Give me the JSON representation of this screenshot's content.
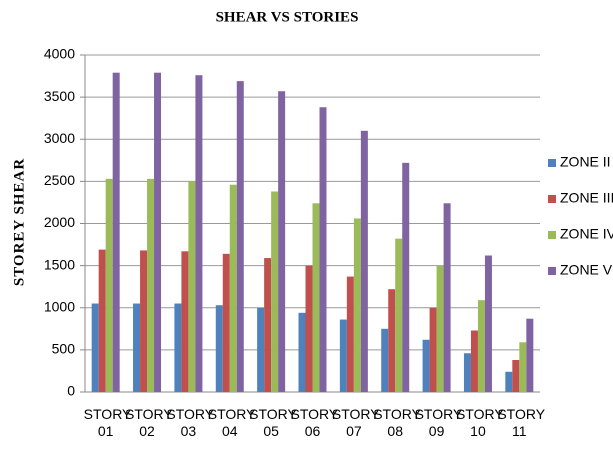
{
  "chart_data": {
    "type": "bar",
    "title": "SHEAR VS STORIES",
    "y_label": "STOREY SHEAR",
    "categories": [
      "STORY 01",
      "STORY 02",
      "STORY 03",
      "STORY 04",
      "STORY 05",
      "STORY 06",
      "STORY 07",
      "STORY 08",
      "STORY 09",
      "STORY 10",
      "STORY 11"
    ],
    "series": [
      {
        "name": "ZONE II",
        "color": "#4f81bd",
        "values": [
          1050,
          1050,
          1050,
          1030,
          1000,
          940,
          860,
          750,
          620,
          460,
          240
        ]
      },
      {
        "name": "ZONE III",
        "color": "#c0504d",
        "values": [
          1690,
          1680,
          1670,
          1640,
          1590,
          1500,
          1370,
          1220,
          1000,
          730,
          380
        ]
      },
      {
        "name": "ZONE IV",
        "color": "#9bbb59",
        "values": [
          2530,
          2530,
          2500,
          2460,
          2380,
          2240,
          2060,
          1820,
          1500,
          1090,
          590
        ]
      },
      {
        "name": "ZONE V",
        "color": "#8064a2",
        "values": [
          3790,
          3790,
          3760,
          3690,
          3570,
          3380,
          3100,
          2720,
          2240,
          1620,
          870
        ]
      }
    ],
    "ylim": [
      0,
      4000
    ],
    "yticks": [
      0,
      500,
      1000,
      1500,
      2000,
      2500,
      3000,
      3500,
      4000
    ],
    "grid": true,
    "legend": "right"
  }
}
